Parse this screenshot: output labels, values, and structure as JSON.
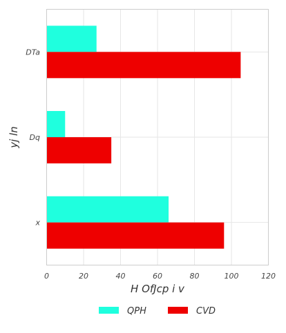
{
  "chart_data": {
    "type": "bar",
    "orientation": "horizontal",
    "categories": [
      "DTa",
      "Dq",
      "x"
    ],
    "series": [
      {
        "name": "QPH",
        "color": "#1fffde",
        "values": [
          27,
          10,
          66
        ]
      },
      {
        "name": "CVD",
        "color": "#ee0000",
        "values": [
          105,
          35,
          96
        ]
      }
    ],
    "xlabel": "H OfJcp i v",
    "ylabel": "yj ln",
    "xlim": [
      0,
      120
    ],
    "xticks": [
      0,
      20,
      40,
      60,
      80,
      100,
      120
    ],
    "grid": true,
    "legend": "bottom-center"
  }
}
